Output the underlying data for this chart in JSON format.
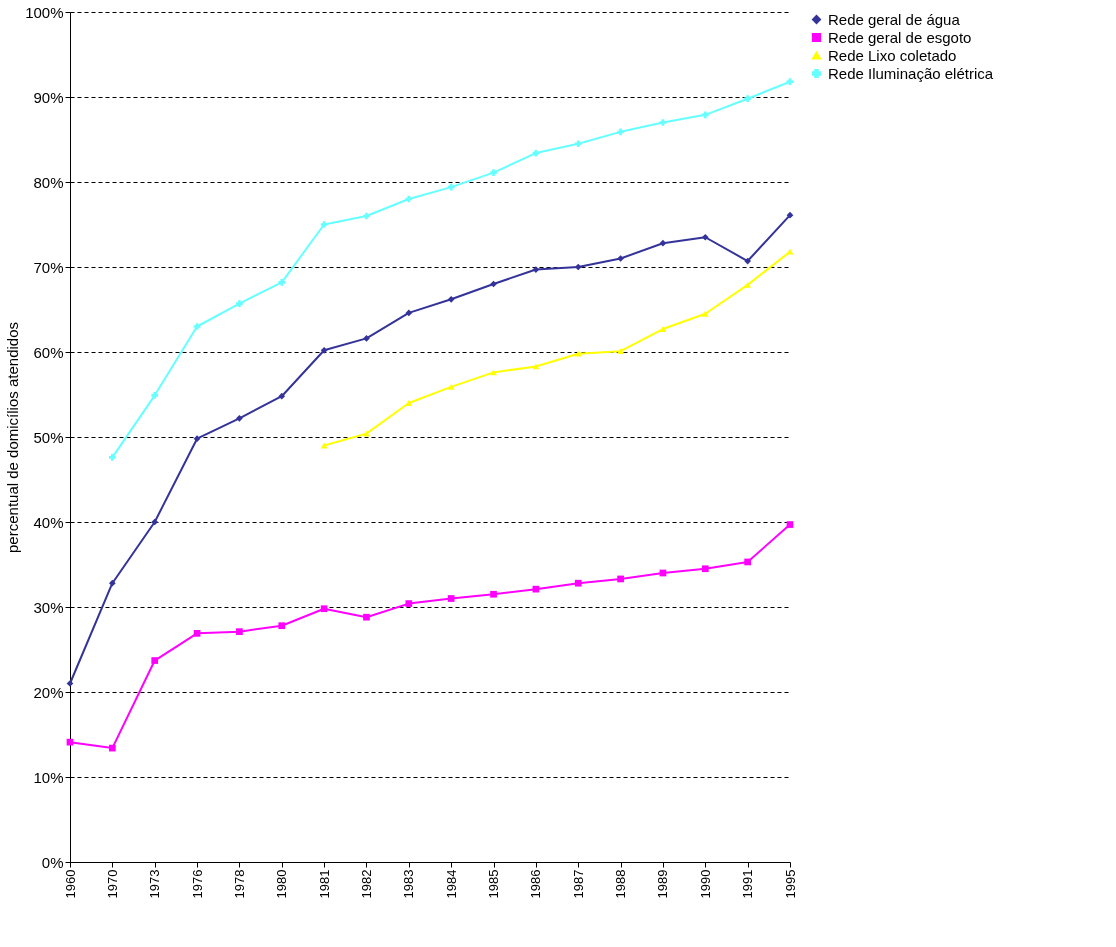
{
  "chart_data": {
    "type": "line",
    "ylabel": "percentual de domicílios atendidos",
    "categories": [
      "1960",
      "1970",
      "1973",
      "1976",
      "1978",
      "1980",
      "1981",
      "1982",
      "1983",
      "1984",
      "1985",
      "1986",
      "1987",
      "1988",
      "1989",
      "1990",
      "1991",
      "1995"
    ],
    "series": [
      {
        "name": "Rede geral de água",
        "color": "#333399",
        "marker": "diamond",
        "values": [
          21.0,
          32.8,
          40.0,
          49.8,
          52.2,
          54.8,
          60.2,
          61.6,
          64.6,
          66.2,
          68.0,
          69.7,
          70.0,
          71.0,
          72.8,
          73.5,
          70.7,
          76.1
        ]
      },
      {
        "name": "Rede geral de esgoto",
        "color": "#ff00ff",
        "marker": "square",
        "values": [
          14.1,
          13.4,
          23.7,
          26.9,
          27.1,
          27.8,
          29.8,
          28.8,
          30.4,
          31.0,
          31.5,
          32.1,
          32.8,
          33.3,
          34.0,
          34.5,
          35.3,
          39.7
        ]
      },
      {
        "name": "Rede Lixo coletado",
        "color": "#ffff00",
        "marker": "triangle",
        "values": [
          null,
          null,
          null,
          null,
          null,
          null,
          49.0,
          50.4,
          54.0,
          55.9,
          57.6,
          58.3,
          59.8,
          60.1,
          62.7,
          64.5,
          67.9,
          71.8
        ]
      },
      {
        "name": "Rede Iluminação elétrica",
        "color": "#66ffff",
        "marker": "cross",
        "values": [
          null,
          47.6,
          54.9,
          63.0,
          65.7,
          68.2,
          75.0,
          76.0,
          78.0,
          79.4,
          81.1,
          83.4,
          84.5,
          85.9,
          87.0,
          87.9,
          89.8,
          91.8
        ]
      }
    ],
    "ylim": [
      0,
      100
    ],
    "yticks": [
      {
        "value": 0,
        "label": "0%"
      },
      {
        "value": 10,
        "label": "10%"
      },
      {
        "value": 20,
        "label": "20%"
      },
      {
        "value": 30,
        "label": "30%"
      },
      {
        "value": 40,
        "label": "40%"
      },
      {
        "value": 50,
        "label": "50%"
      },
      {
        "value": 60,
        "label": "60%"
      },
      {
        "value": 70,
        "label": "70%"
      },
      {
        "value": 80,
        "label": "80%"
      },
      {
        "value": 90,
        "label": "90%"
      },
      {
        "value": 100,
        "label": "100%"
      }
    ],
    "grid": "y",
    "line_style": "solid",
    "legend": "right"
  }
}
